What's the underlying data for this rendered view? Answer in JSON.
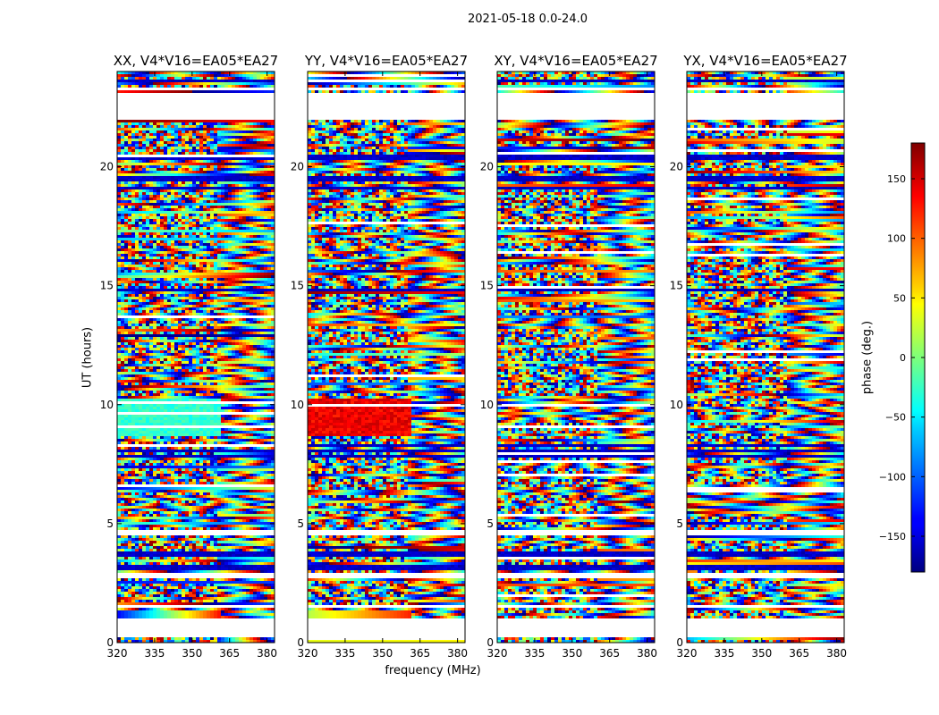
{
  "figure": {
    "suptitle": "2021-05-18 0.0-24.0",
    "ylabel": "UT (hours)",
    "xlabel": "frequency (MHz)",
    "colorbar_label": "phase (deg.)"
  },
  "chart_data": {
    "type": "heatmap",
    "colormap": "jet",
    "panels": [
      {
        "title": "XX, V4*V16=EA05*EA27",
        "pol": "XX"
      },
      {
        "title": "YY, V4*V16=EA05*EA27",
        "pol": "YY"
      },
      {
        "title": "XY, V4*V16=EA05*EA27",
        "pol": "XY"
      },
      {
        "title": "YX, V4*V16=EA05*EA27",
        "pol": "YX"
      }
    ],
    "xlim": [
      320,
      383
    ],
    "ylim": [
      0,
      24
    ],
    "xticks": [
      320,
      335,
      350,
      365,
      380
    ],
    "yticks": [
      0,
      5,
      10,
      15,
      20
    ],
    "clim": [
      -180,
      180
    ],
    "colorbar_ticks": [
      150,
      100,
      50,
      0,
      -50,
      -100,
      -150
    ],
    "colorbar_tick_labels": [
      "150",
      "100",
      "50",
      "0",
      "−50",
      "−100",
      "−150"
    ]
  }
}
